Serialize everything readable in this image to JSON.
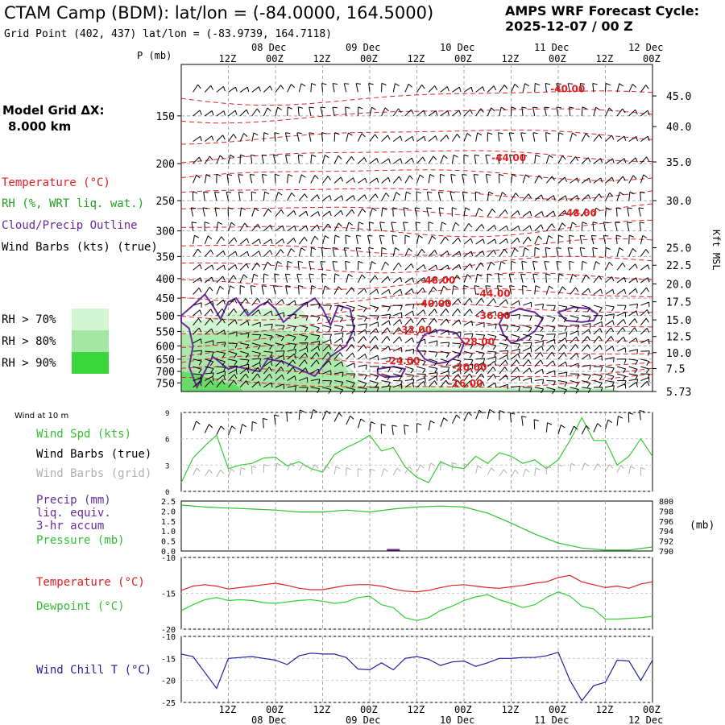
{
  "header": {
    "station_title": "CTAM Camp (BDM):  lat/lon = (-84.0000, 164.5000)",
    "grid_point": "Grid Point (402, 437) lat/lon = (-83.9739, 164.7118)",
    "cycle_line1": "AMPS WRF Forecast Cycle:",
    "cycle_line2": "2025-12-07 / 00  Z",
    "model_grid_label": "Model Grid ΔX:",
    "model_grid_value": "8.000 km"
  },
  "colors": {
    "temperature": "#e02020",
    "rh_label": "#20a020",
    "cloud": "#6a2a9a",
    "rh70": "#d2f5d2",
    "rh80": "#a4e6a4",
    "rh90": "#3ad63a",
    "wind_speed": "#30d030",
    "dewpoint": "#30d030",
    "pressure": "#30c030",
    "precip": "#6a2a9a",
    "wind_chill": "#2020a0",
    "grid_barbs": "#b0b0b0"
  },
  "time_axis": {
    "hour_labels": [
      "12Z",
      "00Z",
      "12Z",
      "00Z",
      "12Z",
      "00Z",
      "12Z",
      "00Z",
      "12Z",
      "00Z"
    ],
    "day_labels": [
      "08 Dec",
      "09 Dec",
      "10 Dec",
      "11 Dec",
      "12 Dec"
    ],
    "hour_label_positions_h": [
      12,
      24,
      36,
      48,
      60,
      72,
      84,
      96,
      108,
      120
    ],
    "day_label_positions_h": [
      24,
      48,
      72,
      96,
      120
    ],
    "range_h": [
      0,
      120
    ]
  },
  "legend": {
    "temperature": "Temperature (°C)",
    "rh": "RH (%, WRT liq. wat.)",
    "cloud": "Cloud/Precip Outline",
    "wind_barbs": "Wind Barbs (kts) (true)",
    "rh70": "RH > 70%",
    "rh80": "RH > 80%",
    "rh90": "RH > 90%",
    "wind10m": "Wind at 10 m",
    "wind_spd": "Wind Spd (kts)",
    "wind_barbs_true": "Wind Barbs (true)",
    "wind_barbs_grid": "Wind Barbs (grid)",
    "precip1": "Precip (mm)",
    "precip2": "liq. equiv.",
    "precip3": "3-hr accum",
    "pressure": "Pressure (mb)",
    "mb_unit": "(mb)",
    "temp2": "Temperature (°C)",
    "dewpoint": "Dewpoint (°C)",
    "wind_chill": "Wind Chill T (°C)"
  },
  "chart_data": [
    {
      "type": "time-height cross-section",
      "y_label": "P (mb)",
      "y_right_label": "Kft MSL",
      "pressure_ticks": [
        "150",
        "200",
        "250",
        "300",
        "350",
        "400",
        "450",
        "500",
        "550",
        "600",
        "650",
        "700",
        "750"
      ],
      "pressure_values": [
        150,
        200,
        250,
        300,
        350,
        400,
        450,
        500,
        550,
        600,
        650,
        700,
        750
      ],
      "height_ticks": [
        "45.0",
        "40.0",
        "35.0",
        "30.0",
        "25.0",
        "22.5",
        "20.0",
        "17.5",
        "15.0",
        "12.5",
        "10.0",
        "7.5",
        "5.73"
      ],
      "height_tick_pressures": [
        133,
        160,
        198,
        250,
        332,
        369,
        413,
        460,
        513,
        567,
        625,
        688,
        790
      ],
      "p_range": [
        110,
        790
      ],
      "temperature_labels": [
        {
          "text": "-40.00",
          "t": 94,
          "p": 130
        },
        {
          "text": "-44.00",
          "t": 79,
          "p": 197
        },
        {
          "text": "-48.00",
          "t": 97,
          "p": 275
        },
        {
          "text": "-48.00",
          "t": 61,
          "p": 412
        },
        {
          "text": "-44.00",
          "t": 75,
          "p": 447
        },
        {
          "text": "-40.00",
          "t": 60,
          "p": 475
        },
        {
          "text": "-36.00",
          "t": 75,
          "p": 510
        },
        {
          "text": "-32.00",
          "t": 55,
          "p": 555
        },
        {
          "text": "-28.00",
          "t": 71,
          "p": 598
        },
        {
          "text": "-24.00",
          "t": 52,
          "p": 670
        },
        {
          "text": "-20.00",
          "t": 69,
          "p": 697
        },
        {
          "text": "-16.00",
          "t": 68,
          "p": 767
        }
      ]
    },
    {
      "type": "line",
      "y_label": "Wind Spd (kts)",
      "y_ticks": [
        "9",
        "6",
        "3",
        "0"
      ],
      "ylim": [
        0,
        9
      ],
      "x": [
        0,
        3,
        6,
        9,
        12,
        15,
        18,
        21,
        24,
        27,
        30,
        33,
        36,
        39,
        42,
        45,
        48,
        51,
        54,
        57,
        60,
        63,
        66,
        69,
        72,
        75,
        78,
        81,
        84,
        87,
        90,
        93,
        96,
        99,
        102,
        105,
        108,
        111,
        114,
        117,
        120
      ],
      "series": [
        {
          "name": "Wind Spd",
          "values": [
            1.0,
            3.8,
            5.2,
            6.4,
            2.6,
            3.0,
            3.2,
            3.8,
            3.9,
            2.9,
            3.4,
            2.6,
            2.2,
            4.2,
            5.0,
            5.6,
            6.4,
            4.6,
            5.0,
            2.8,
            1.6,
            1.0,
            3.4,
            2.8,
            2.6,
            4.0,
            3.2,
            4.4,
            4.0,
            3.2,
            3.6,
            2.6,
            3.6,
            5.8,
            8.4,
            5.8,
            5.8,
            3.0,
            4.0,
            6.0,
            4.0
          ]
        }
      ]
    },
    {
      "type": "line",
      "y_label": "Pressure (mb)",
      "y_ticks_left": [
        "2.5",
        "2.0",
        "1.5",
        "1.0",
        "0.5",
        "0.0"
      ],
      "y_ticks_right": [
        "800",
        "798",
        "796",
        "794",
        "792",
        "790"
      ],
      "ylim_precip": [
        0,
        2.5
      ],
      "ylim_pressure": [
        790,
        800
      ],
      "x": [
        0,
        6,
        12,
        18,
        24,
        30,
        36,
        42,
        48,
        54,
        60,
        66,
        72,
        78,
        84,
        90,
        96,
        102,
        108,
        114,
        120
      ],
      "series": [
        {
          "name": "Pressure",
          "values": [
            799.2,
            798.8,
            798.6,
            798.4,
            798.2,
            797.8,
            797.8,
            798.2,
            797.8,
            798.4,
            798.8,
            799.0,
            798.8,
            797.6,
            795.6,
            793.4,
            791.6,
            790.6,
            790.2,
            790.2,
            790.8
          ]
        },
        {
          "name": "Precip",
          "values": [
            0,
            0,
            0,
            0,
            0,
            0,
            0,
            0,
            0,
            0.02,
            0,
            0,
            0,
            0,
            0,
            0,
            0,
            0,
            0,
            0,
            0
          ]
        }
      ]
    },
    {
      "type": "line",
      "y_label": "Temperature (°C)",
      "y_ticks": [
        "-10",
        "-15",
        "-20"
      ],
      "ylim": [
        -20,
        -10
      ],
      "x": [
        0,
        3,
        6,
        9,
        12,
        15,
        18,
        21,
        24,
        27,
        30,
        33,
        36,
        39,
        42,
        45,
        48,
        51,
        54,
        57,
        60,
        63,
        66,
        69,
        72,
        75,
        78,
        81,
        84,
        87,
        90,
        93,
        96,
        99,
        102,
        105,
        108,
        111,
        114,
        117,
        120
      ],
      "series": [
        {
          "name": "Temperature",
          "values": [
            -14.6,
            -14.0,
            -13.8,
            -14.0,
            -14.4,
            -14.2,
            -14.0,
            -13.8,
            -13.6,
            -13.9,
            -14.3,
            -14.5,
            -14.5,
            -14.2,
            -13.9,
            -13.8,
            -13.8,
            -14.0,
            -14.4,
            -14.7,
            -14.8,
            -14.6,
            -14.2,
            -13.9,
            -13.8,
            -14.0,
            -14.2,
            -14.3,
            -14.1,
            -13.9,
            -13.6,
            -13.4,
            -12.8,
            -12.5,
            -13.4,
            -13.8,
            -14.2,
            -14.0,
            -14.3,
            -13.7,
            -13.4
          ]
        },
        {
          "name": "Dewpoint",
          "values": [
            -17.4,
            -16.6,
            -15.9,
            -15.6,
            -16.0,
            -15.9,
            -16.0,
            -16.3,
            -16.4,
            -16.2,
            -16.0,
            -15.9,
            -16.1,
            -16.4,
            -16.2,
            -15.6,
            -15.4,
            -16.6,
            -17.0,
            -18.4,
            -18.8,
            -18.4,
            -17.4,
            -16.8,
            -16.0,
            -15.5,
            -15.2,
            -15.9,
            -16.4,
            -17.0,
            -16.6,
            -15.6,
            -14.8,
            -15.4,
            -16.8,
            -17.2,
            -18.6,
            -18.6,
            -18.5,
            -18.4,
            -18.2
          ]
        }
      ]
    },
    {
      "type": "line",
      "y_label": "Wind Chill T (°C)",
      "y_ticks": [
        "-10",
        "-15",
        "-20",
        "-25"
      ],
      "ylim": [
        -25,
        -10
      ],
      "x": [
        0,
        3,
        6,
        9,
        12,
        15,
        18,
        21,
        24,
        27,
        30,
        33,
        36,
        39,
        42,
        45,
        48,
        51,
        54,
        57,
        60,
        63,
        66,
        69,
        72,
        75,
        78,
        81,
        84,
        87,
        90,
        93,
        96,
        99,
        102,
        105,
        108,
        111,
        114,
        117,
        120
      ],
      "series": [
        {
          "name": "Wind Chill",
          "values": [
            -14.0,
            -14.6,
            -18.2,
            -21.8,
            -15.0,
            -14.8,
            -14.6,
            -15.0,
            -15.4,
            -16.4,
            -14.4,
            -13.8,
            -14.0,
            -14.0,
            -14.8,
            -17.4,
            -17.6,
            -16.0,
            -17.6,
            -15.0,
            -14.6,
            -15.2,
            -16.6,
            -15.8,
            -15.6,
            -16.8,
            -16.0,
            -15.0,
            -15.0,
            -14.8,
            -14.8,
            -14.4,
            -13.6,
            -20.0,
            -24.6,
            -21.2,
            -20.4,
            -15.4,
            -15.6,
            -20.0,
            -15.4
          ]
        }
      ]
    }
  ]
}
